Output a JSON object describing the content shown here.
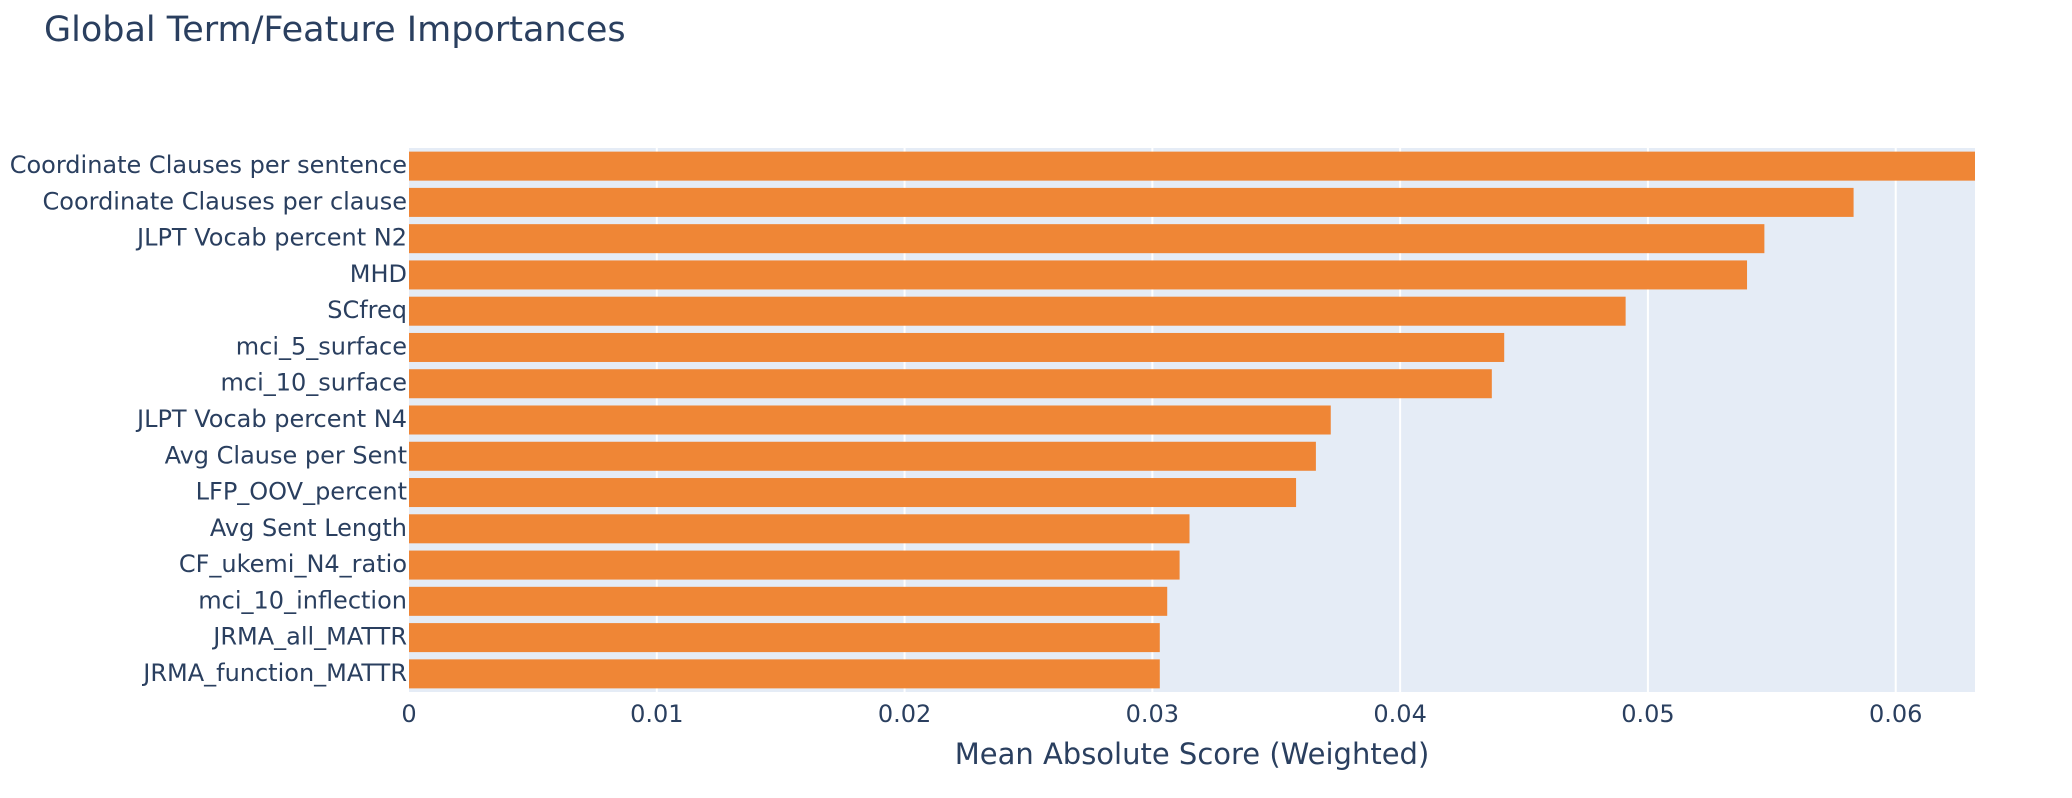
{
  "chart_data": {
    "type": "bar",
    "orientation": "horizontal",
    "title": "Global Term/Feature Importances",
    "xlabel": "Mean Absolute Score (Weighted)",
    "ylabel": "",
    "categories": [
      "Coordinate Clauses per sentence",
      "Coordinate Clauses per clause",
      "JLPT Vocab percent N2",
      "MHD",
      "SCfreq",
      "mci_5_surface",
      "mci_10_surface",
      "JLPT Vocab percent N4",
      "Avg Clause per Sent",
      "LFP_OOV_percent",
      "Avg Sent Length",
      "CF_ukemi_N4_ratio",
      "mci_10_inflection",
      "JRMA_all_MATTR",
      "JRMA_function_MATTR"
    ],
    "values": [
      0.0632,
      0.0583,
      0.0547,
      0.054,
      0.0491,
      0.0442,
      0.0437,
      0.0372,
      0.0366,
      0.0358,
      0.0315,
      0.0311,
      0.0306,
      0.0303,
      0.0303
    ],
    "xlim": [
      0,
      0.0632
    ],
    "xticks": [
      "0",
      "0.01",
      "0.02",
      "0.03",
      "0.04",
      "0.05",
      "0.06"
    ],
    "xtick_values": [
      0,
      0.01,
      0.02,
      0.03,
      0.04,
      0.05,
      0.06
    ],
    "grid": true,
    "legend": "none",
    "bar_color": "#ef8636",
    "plot_bg_color": "#e5ecf6",
    "grid_color": "#ffffff",
    "text_color": "#2a3f5f"
  }
}
